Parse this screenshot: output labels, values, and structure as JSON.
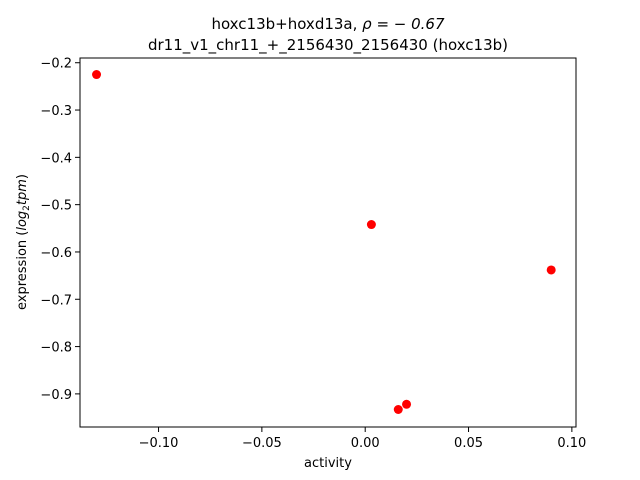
{
  "chart_data": {
    "type": "scatter",
    "title_line1_prefix": "hoxc13b+hoxd13a, ",
    "title_line1_rho": "ρ = − 0.67",
    "title_line2": "dr11_v1_chr11_+_2156430_2156430 (hoxc13b)",
    "xlabel": "activity",
    "ylabel_prefix": "expression (",
    "ylabel_math": "log",
    "ylabel_sub": "2",
    "ylabel_math2": "tpm",
    "ylabel_suffix": ")",
    "xlim": [
      -0.138,
      0.102
    ],
    "ylim": [
      -0.97,
      -0.19
    ],
    "xticks": [
      -0.1,
      -0.05,
      0.0,
      0.05,
      0.1
    ],
    "xtick_labels": [
      "−0.10",
      "−0.05",
      "0.00",
      "0.05",
      "0.10"
    ],
    "yticks": [
      -0.2,
      -0.3,
      -0.4,
      -0.5,
      -0.6,
      -0.7,
      -0.8,
      -0.9
    ],
    "ytick_labels": [
      "−0.2",
      "−0.3",
      "−0.4",
      "−0.5",
      "−0.6",
      "−0.7",
      "−0.8",
      "−0.9"
    ],
    "grid": false,
    "marker_color": "#ff0000",
    "points": [
      {
        "x": -0.13,
        "y": -0.225
      },
      {
        "x": 0.003,
        "y": -0.542
      },
      {
        "x": 0.09,
        "y": -0.638
      },
      {
        "x": 0.02,
        "y": -0.922
      },
      {
        "x": 0.016,
        "y": -0.933
      }
    ]
  }
}
